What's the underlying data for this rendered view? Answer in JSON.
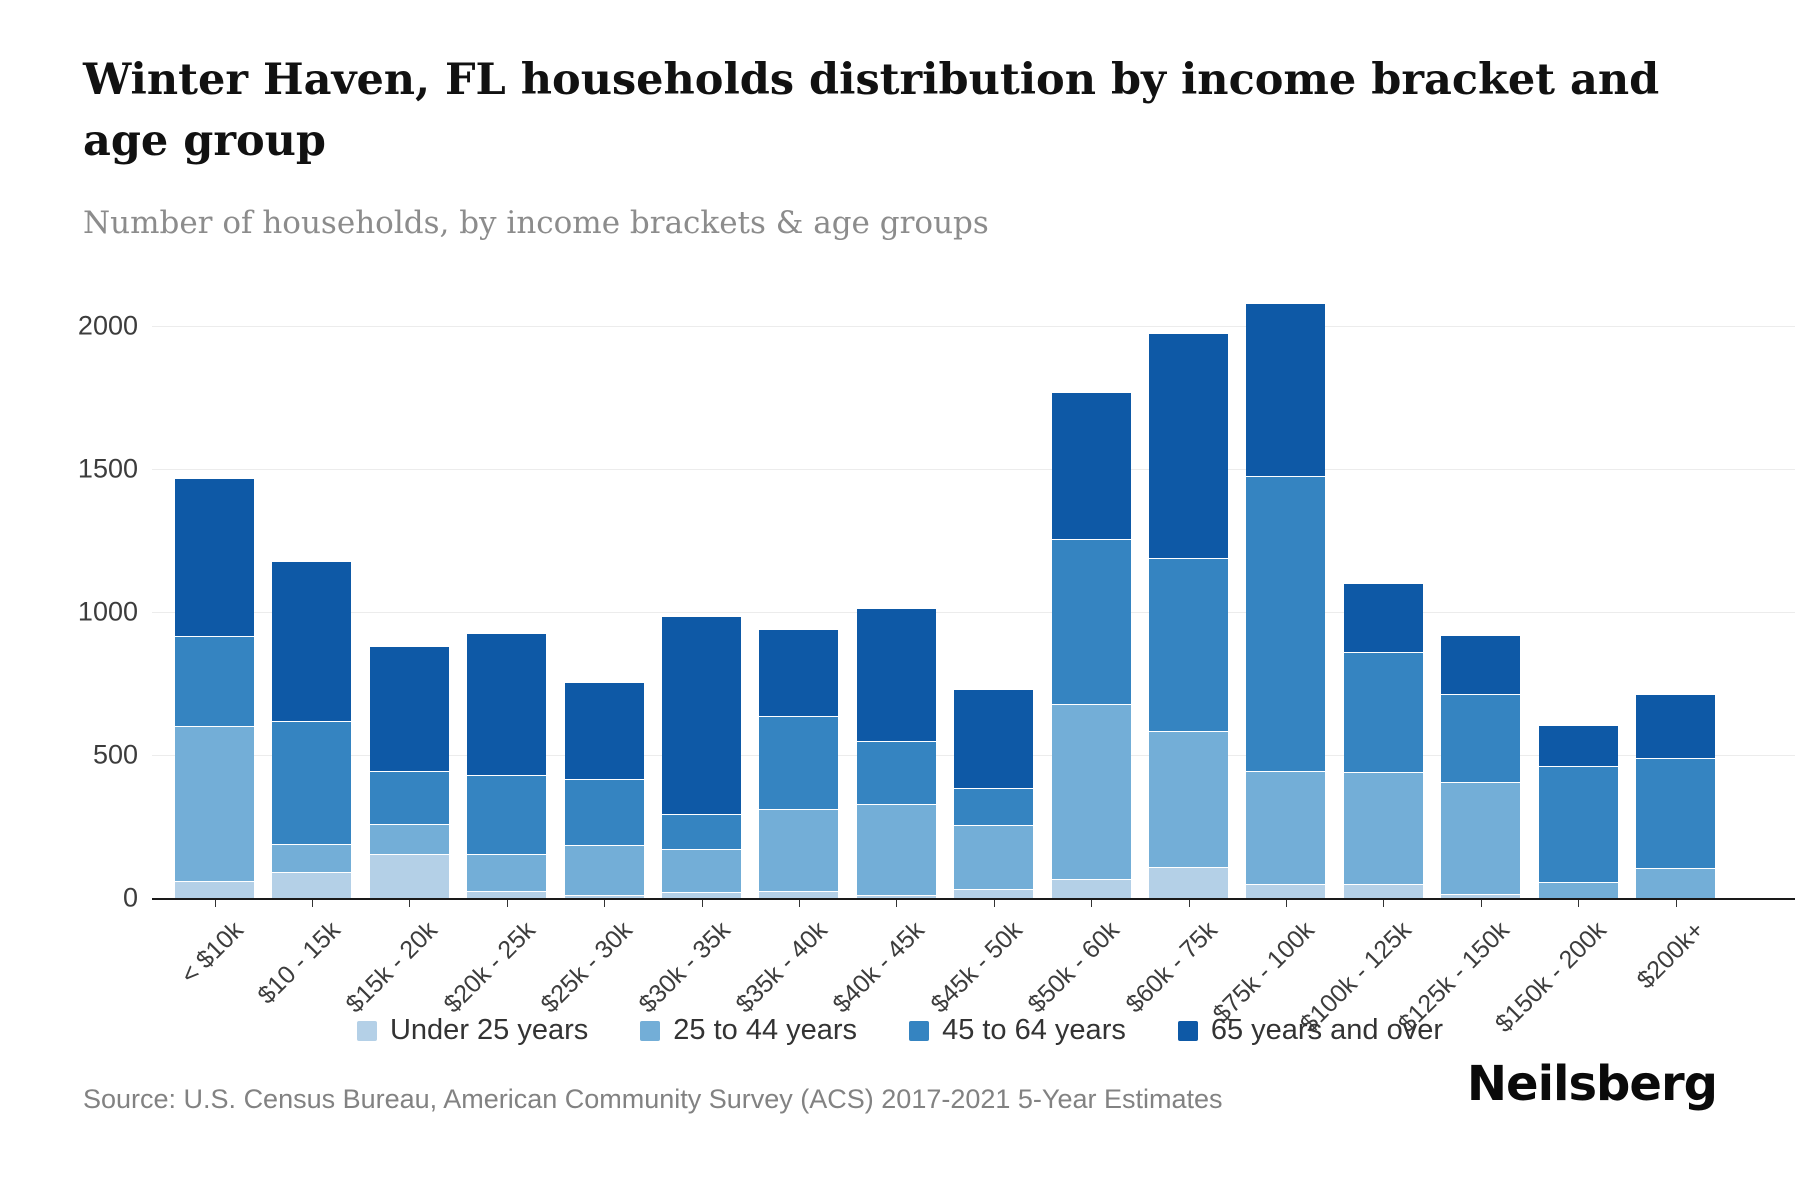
{
  "title": "Winter Haven, FL households distribution by income bracket and age group",
  "subtitle": "Number of households, by income brackets & age groups",
  "source": "Source: U.S. Census Bureau, American Community Survey (ACS) 2017-2021 5-Year Estimates",
  "brand": "Neilsberg",
  "chart_data": {
    "type": "bar",
    "stacked": true,
    "title": "Winter Haven, FL households distribution by income bracket and age group",
    "xlabel": "",
    "ylabel": "Number of households",
    "ylim": [
      0,
      2150
    ],
    "yticks": [
      0,
      500,
      1000,
      1500,
      2000
    ],
    "grid": true,
    "legend_position": "bottom",
    "categories": [
      "< $10k",
      "$10 - 15k",
      "$15k - 20k",
      "$20k - 25k",
      "$25k - 30k",
      "$30k - 35k",
      "$35k - 40k",
      "$40k - 45k",
      "$45k - 50k",
      "$50k - 60k",
      "$60k - 75k",
      "$75k - 100k",
      "$100k - 125k",
      "$125k - 150k",
      "$150k - 200k",
      "$200k+"
    ],
    "series": [
      {
        "name": "Under 25 years",
        "color": "#b4d0e7",
        "values": [
          60,
          90,
          155,
          25,
          10,
          20,
          25,
          10,
          30,
          65,
          110,
          50,
          50,
          15,
          0,
          0
        ]
      },
      {
        "name": "25 to 44 years",
        "color": "#73aed7",
        "values": [
          540,
          100,
          105,
          130,
          175,
          150,
          285,
          320,
          225,
          615,
          475,
          395,
          390,
          390,
          55,
          105
        ]
      },
      {
        "name": "45 to 64 years",
        "color": "#3584c1",
        "values": [
          315,
          430,
          185,
          275,
          230,
          125,
          325,
          220,
          130,
          575,
          605,
          1030,
          420,
          310,
          405,
          385
        ]
      },
      {
        "name": "65 years and over",
        "color": "#0e59a6",
        "values": [
          555,
          560,
          435,
          495,
          340,
          690,
          305,
          465,
          345,
          515,
          785,
          605,
          240,
          205,
          145,
          225
        ]
      }
    ],
    "totals": [
      1470,
      1180,
      880,
      925,
      755,
      985,
      940,
      1015,
      730,
      1770,
      1975,
      2080,
      1100,
      920,
      605,
      715
    ]
  }
}
